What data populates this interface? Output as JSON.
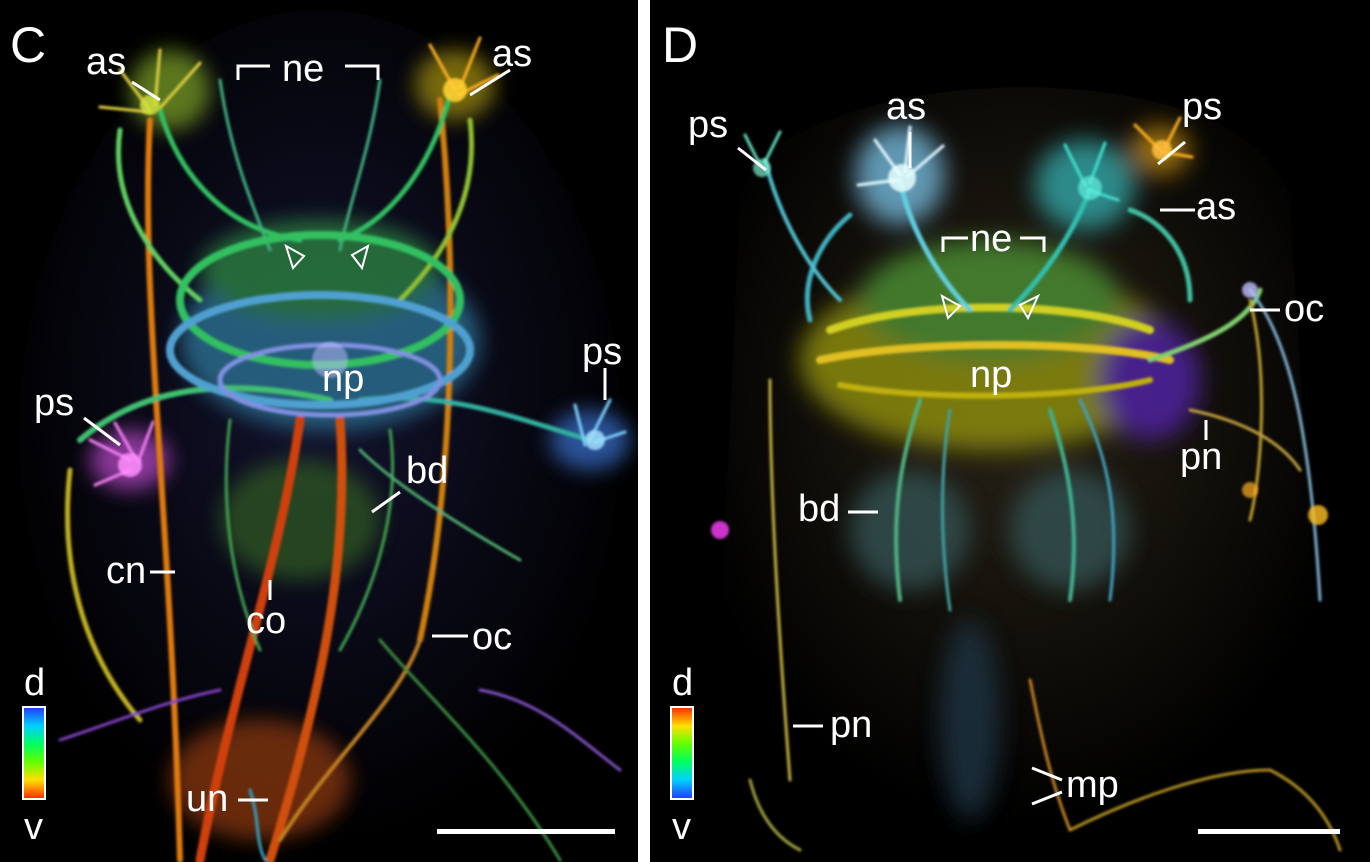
{
  "panels": [
    {
      "letter": "C",
      "labels": {
        "as_left": "as",
        "as_right": "as",
        "ne": "ne",
        "ps_left": "ps",
        "ps_right": "ps",
        "np": "np",
        "bd": "bd",
        "cn": "cn",
        "co": "co",
        "oc": "oc",
        "un": "un"
      },
      "legend": {
        "top": "d",
        "bottom": "v"
      }
    },
    {
      "letter": "D",
      "labels": {
        "ps_left": "ps",
        "as_left": "as",
        "ps_right": "ps",
        "as_right": "as",
        "ne": "ne",
        "oc": "oc",
        "np": "np",
        "pn_right": "pn",
        "bd": "bd",
        "pn_left": "pn",
        "mp": "mp"
      },
      "legend": {
        "top": "d",
        "bottom": "v"
      }
    }
  ]
}
